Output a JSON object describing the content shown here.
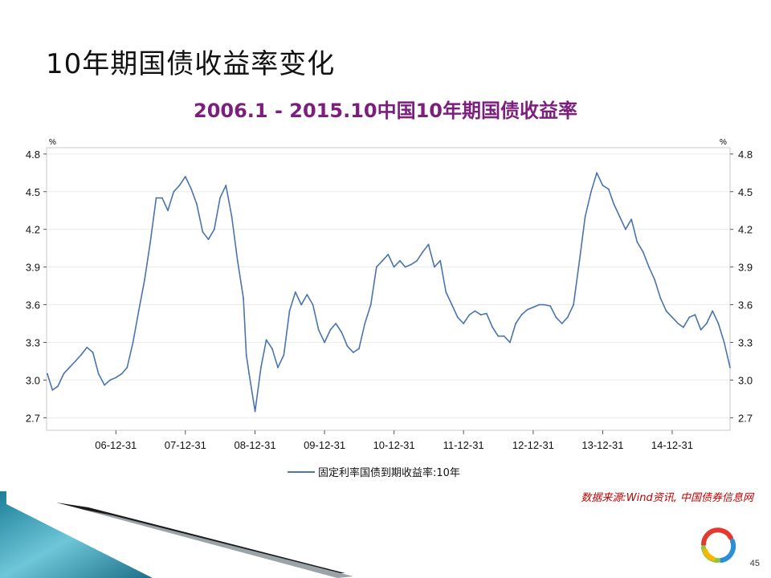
{
  "slide": {
    "title": "10年期国债收益率变化",
    "source": "数据来源:Wind资讯, 中国债券信息网",
    "page_number": "45"
  },
  "chart_data": {
    "type": "line",
    "title": "2006.1 - 2015.10中国10年期国债收益率",
    "ylabel_left": "%",
    "ylabel_right": "%",
    "ylim": [
      2.6,
      4.85
    ],
    "yticks": [
      2.7,
      3.0,
      3.3,
      3.6,
      3.9,
      4.2,
      4.5,
      4.8
    ],
    "ytick_labels": [
      "2.7",
      "3.0",
      "3.3",
      "3.6",
      "3.9",
      "4.2",
      "4.5",
      "4.8"
    ],
    "xlim": [
      "2006-01-01",
      "2015-10-31"
    ],
    "xticks": [
      "2006-12-31",
      "2007-12-31",
      "2008-12-31",
      "2009-12-31",
      "2010-12-31",
      "2011-12-31",
      "2012-12-31",
      "2013-12-31",
      "2014-12-31"
    ],
    "xtick_labels": [
      "06-12-31",
      "07-12-31",
      "08-12-31",
      "09-12-31",
      "10-12-31",
      "11-12-31",
      "12-12-31",
      "13-12-31",
      "14-12-31"
    ],
    "legend_position": "bottom",
    "grid": true,
    "colors": {
      "line": "#4a74ad",
      "title": "#7b1e7d",
      "source": "#c00000"
    },
    "series": [
      {
        "name": "固定利率国债到期收益率:10年",
        "x": [
          "2006-01-05",
          "2006-02-01",
          "2006-03-01",
          "2006-04-01",
          "2006-05-01",
          "2006-06-01",
          "2006-07-01",
          "2006-08-01",
          "2006-09-01",
          "2006-10-01",
          "2006-11-01",
          "2006-12-01",
          "2006-12-31",
          "2007-01-31",
          "2007-02-28",
          "2007-03-31",
          "2007-04-30",
          "2007-05-31",
          "2007-06-30",
          "2007-07-31",
          "2007-08-31",
          "2007-09-30",
          "2007-10-31",
          "2007-11-30",
          "2007-12-31",
          "2008-01-31",
          "2008-02-29",
          "2008-03-31",
          "2008-04-30",
          "2008-05-31",
          "2008-06-30",
          "2008-07-31",
          "2008-08-31",
          "2008-09-30",
          "2008-10-31",
          "2008-11-15",
          "2008-11-30",
          "2008-12-31",
          "2009-01-31",
          "2009-02-28",
          "2009-03-31",
          "2009-04-30",
          "2009-05-31",
          "2009-06-30",
          "2009-07-31",
          "2009-08-31",
          "2009-09-30",
          "2009-10-31",
          "2009-11-30",
          "2009-12-31",
          "2010-01-31",
          "2010-02-28",
          "2010-03-31",
          "2010-04-30",
          "2010-05-31",
          "2010-06-30",
          "2010-07-31",
          "2010-08-31",
          "2010-09-30",
          "2010-10-31",
          "2010-11-30",
          "2010-12-31",
          "2011-01-31",
          "2011-02-28",
          "2011-03-31",
          "2011-04-30",
          "2011-05-31",
          "2011-06-30",
          "2011-07-31",
          "2011-08-31",
          "2011-09-30",
          "2011-10-31",
          "2011-11-30",
          "2011-12-31",
          "2012-01-31",
          "2012-02-29",
          "2012-03-31",
          "2012-04-30",
          "2012-05-31",
          "2012-06-30",
          "2012-07-31",
          "2012-08-31",
          "2012-09-30",
          "2012-10-31",
          "2012-11-30",
          "2012-12-31",
          "2013-01-31",
          "2013-02-28",
          "2013-03-31",
          "2013-04-30",
          "2013-05-31",
          "2013-06-30",
          "2013-07-31",
          "2013-08-31",
          "2013-09-30",
          "2013-10-31",
          "2013-11-30",
          "2013-12-31",
          "2014-01-31",
          "2014-02-28",
          "2014-03-31",
          "2014-04-30",
          "2014-05-31",
          "2014-06-30",
          "2014-07-31",
          "2014-08-31",
          "2014-09-30",
          "2014-10-31",
          "2014-11-30",
          "2014-12-31",
          "2015-01-31",
          "2015-02-28",
          "2015-03-31",
          "2015-04-30",
          "2015-05-31",
          "2015-06-30",
          "2015-07-31",
          "2015-08-31",
          "2015-09-30",
          "2015-10-31"
        ],
        "y": [
          3.05,
          2.92,
          2.95,
          3.05,
          3.1,
          3.15,
          3.2,
          3.26,
          3.22,
          3.05,
          2.96,
          3.0,
          3.02,
          3.05,
          3.1,
          3.3,
          3.55,
          3.8,
          4.1,
          4.45,
          4.45,
          4.35,
          4.5,
          4.55,
          4.62,
          4.52,
          4.4,
          4.18,
          4.12,
          4.2,
          4.45,
          4.55,
          4.3,
          3.95,
          3.65,
          3.2,
          3.05,
          2.75,
          3.1,
          3.32,
          3.25,
          3.1,
          3.2,
          3.55,
          3.7,
          3.6,
          3.68,
          3.6,
          3.4,
          3.3,
          3.4,
          3.45,
          3.38,
          3.27,
          3.22,
          3.25,
          3.45,
          3.6,
          3.9,
          3.95,
          4.0,
          3.9,
          3.95,
          3.9,
          3.92,
          3.95,
          4.02,
          4.08,
          3.9,
          3.95,
          3.7,
          3.6,
          3.5,
          3.45,
          3.52,
          3.55,
          3.52,
          3.53,
          3.42,
          3.35,
          3.35,
          3.3,
          3.45,
          3.52,
          3.56,
          3.58,
          3.6,
          3.6,
          3.59,
          3.5,
          3.45,
          3.5,
          3.6,
          3.95,
          4.3,
          4.5,
          4.65,
          4.55,
          4.52,
          4.4,
          4.3,
          4.2,
          4.28,
          4.1,
          4.02,
          3.9,
          3.8,
          3.65,
          3.55,
          3.5,
          3.45,
          3.42,
          3.5,
          3.52,
          3.4,
          3.45,
          3.55,
          3.45,
          3.3,
          3.1
        ]
      }
    ]
  }
}
